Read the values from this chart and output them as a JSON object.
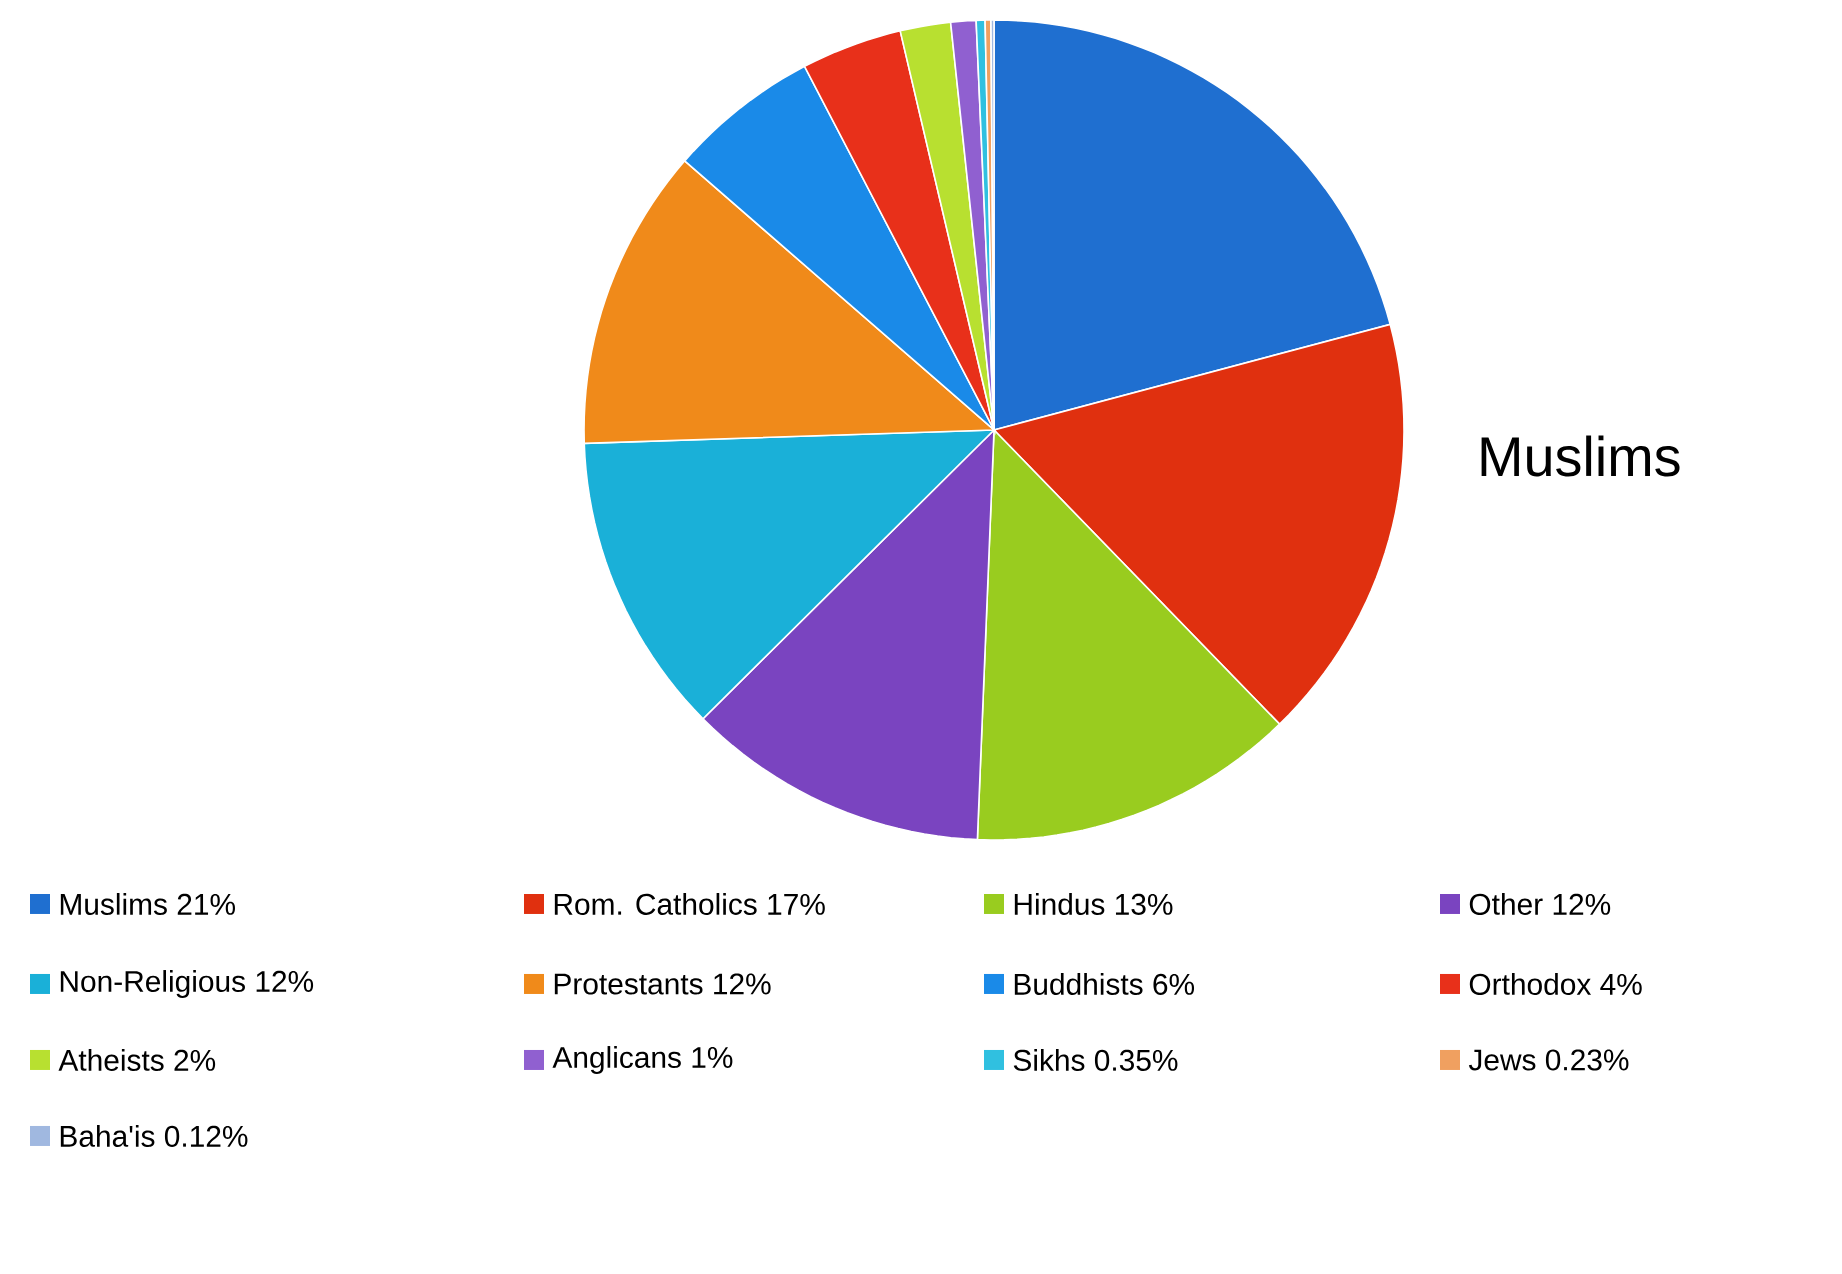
{
  "chart_data": {
    "type": "pie",
    "title": "Muslims",
    "categories": [
      "Muslims 21%",
      "Rom. Catholics 17%",
      "Hindus 13%",
      "Other 12%",
      "Non-Religious 12%",
      "Protestants 12%",
      "Buddhists 6%",
      "Orthodox 4%",
      "Atheists 2%",
      "Anglicans 1%",
      "Sikhs 0.35%",
      "Jews 0.23%",
      "Baha'is 0.12%"
    ],
    "values": [
      21,
      17,
      13,
      12,
      12,
      12,
      6,
      4,
      2,
      1,
      0.35,
      0.23,
      0.12
    ],
    "colors": [
      "#1f6fd0",
      "#e0300f",
      "#99cc1f",
      "#7a44c0",
      "#1ab0d8",
      "#f08a1a",
      "#1a8ae8",
      "#e8301a",
      "#b8e030",
      "#9060d0",
      "#30c0e0",
      "#f0a060",
      "#a0b8e0"
    ],
    "legend": "bottom"
  }
}
